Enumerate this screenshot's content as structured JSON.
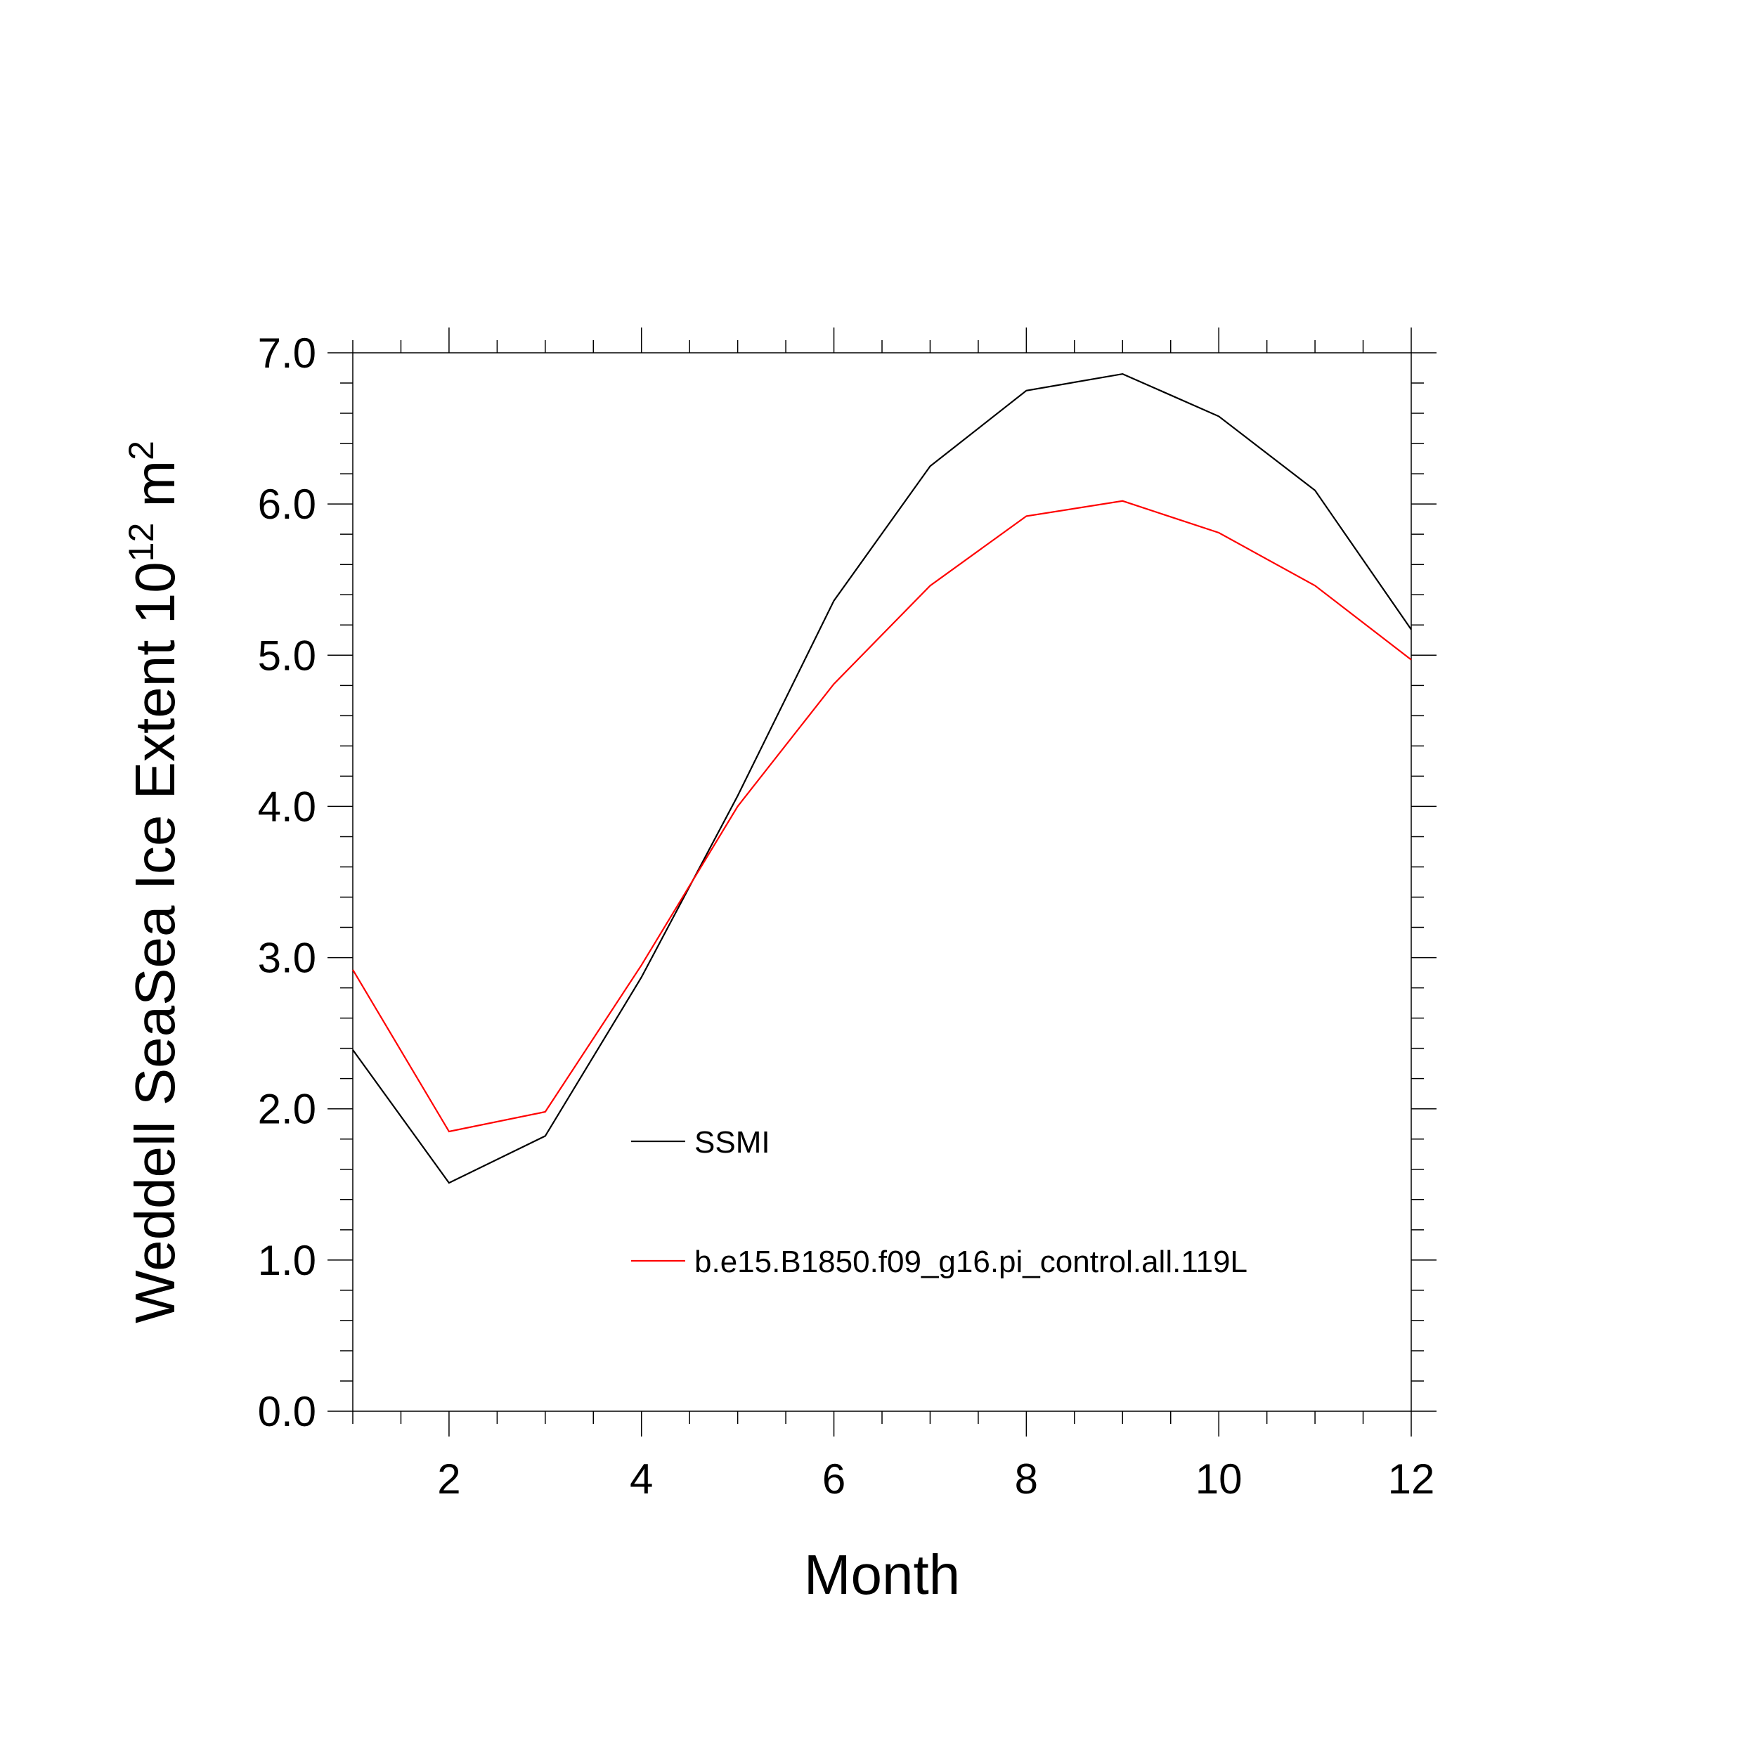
{
  "chart_data": {
    "type": "line",
    "title": "",
    "xlabel": "Month",
    "ylabel": {
      "main": "Weddell SeaSea Ice Extent 10",
      "superscript_exp": "12",
      "unit": " m",
      "superscript_unit": "2"
    },
    "xlim": [
      1,
      12
    ],
    "ylim": [
      0,
      7
    ],
    "xticks": [
      2,
      4,
      6,
      8,
      10,
      12
    ],
    "xtick_labels": [
      "2",
      "4",
      "6",
      "8",
      "10",
      "12"
    ],
    "yticks": [
      0,
      1,
      2,
      3,
      4,
      5,
      6,
      7
    ],
    "ytick_labels": [
      "0.0",
      "1.0",
      "2.0",
      "3.0",
      "4.0",
      "5.0",
      "6.0",
      "7.0"
    ],
    "grid": false,
    "legend_position": "inside-lower-center",
    "x": [
      1,
      2,
      3,
      4,
      5,
      6,
      7,
      8,
      9,
      10,
      11,
      12
    ],
    "series": [
      {
        "name": "SSMI",
        "color": "#000000",
        "values": [
          2.39,
          1.51,
          1.82,
          2.87,
          4.07,
          5.36,
          6.25,
          6.75,
          6.86,
          6.58,
          6.09,
          5.17
        ]
      },
      {
        "name": "b.e15.B1850.f09_g16.pi_control.all.119L",
        "color": "#ff0000",
        "values": [
          2.92,
          1.85,
          1.98,
          2.95,
          4.0,
          4.81,
          5.46,
          5.92,
          6.02,
          5.81,
          5.46,
          4.97
        ]
      }
    ]
  }
}
